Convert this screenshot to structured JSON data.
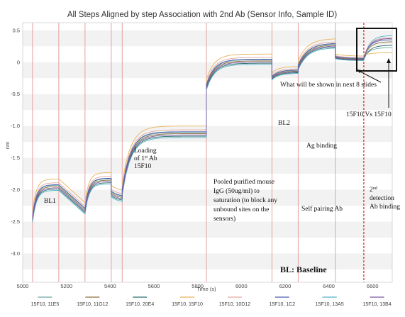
{
  "chart_data": {
    "type": "line",
    "title": "All Steps Aligned by step Association with 2nd Ab (Sensor Info, Sample ID)",
    "xlabel": "Time (s)",
    "ylabel": "nm",
    "xlim": [
      5000,
      6690
    ],
    "ylim": [
      -3.45,
      0.62
    ],
    "x_ticks": [
      5000,
      5200,
      5400,
      5600,
      5800,
      6000,
      6200,
      6400,
      6600
    ],
    "y_ticks": [
      0.5,
      0,
      -0.5,
      -1.0,
      -1.5,
      -2.0,
      -2.5,
      -3.0
    ],
    "y_tick_labels": [
      "0.5",
      "0",
      "-0.5",
      "-1.0",
      "-1.5",
      "-2.0",
      "-2.5",
      "-3.0"
    ],
    "grid": "horizontal bands",
    "legend_position": "bottom",
    "step_boundaries": [
      5045,
      5165,
      5285,
      5405,
      5455,
      5840,
      6140,
      6260,
      6430
    ],
    "highlight_boundary": 6560,
    "series": [
      {
        "name": "15F10, 11E5",
        "color": "#6fa8a8",
        "offset": 0.02,
        "final_jump": 0.12
      },
      {
        "name": "15F10, 11G12",
        "color": "#8b6f3d",
        "offset": 0.0,
        "final_jump": 0.22
      },
      {
        "name": "15F10, 20E4",
        "color": "#2f6f6f",
        "offset": -0.04,
        "final_jump": 0.18
      },
      {
        "name": "15F10, 15F10",
        "color": "#e8b35a",
        "offset": 0.12,
        "final_jump": 0.0
      },
      {
        "name": "15F10, 10D12",
        "color": "#e6a6a0",
        "offset": 0.06,
        "final_jump": 0.26
      },
      {
        "name": "15F10, 1C2",
        "color": "#4a5fb0",
        "offset": 0.03,
        "final_jump": 0.24
      },
      {
        "name": "15F10, 13A5",
        "color": "#4fb3c8",
        "offset": -0.06,
        "final_jump": 0.34
      },
      {
        "name": "15F10, 13B4",
        "color": "#7a5aa0",
        "offset": -0.02,
        "final_jump": 0.28
      }
    ],
    "annotations": {
      "bl1": "BL1",
      "loading_1": "Loading",
      "loading_2a": "of 1",
      "loading_2b": "st",
      "loading_2c": " Ab",
      "loading_3": "15F10",
      "pooled_1": "Pooled purified mouse",
      "pooled_2": "IgG (50ug/ml) to",
      "pooled_3": "saturation (to block any",
      "pooled_4": "unbound sites on the",
      "pooled_5": "sensors)",
      "bl2": "BL2",
      "ag_binding": "Ag binding",
      "self_pairing": "Self pairing Ab",
      "detection_1a": "2",
      "detection_1b": "nd",
      "detection_2": "detection",
      "detection_3": "Ab binding",
      "next_slides": "What will be shown in next 8 slides",
      "vs": "15F10 Vs 15F10",
      "baseline": "BL: Baseline"
    }
  }
}
